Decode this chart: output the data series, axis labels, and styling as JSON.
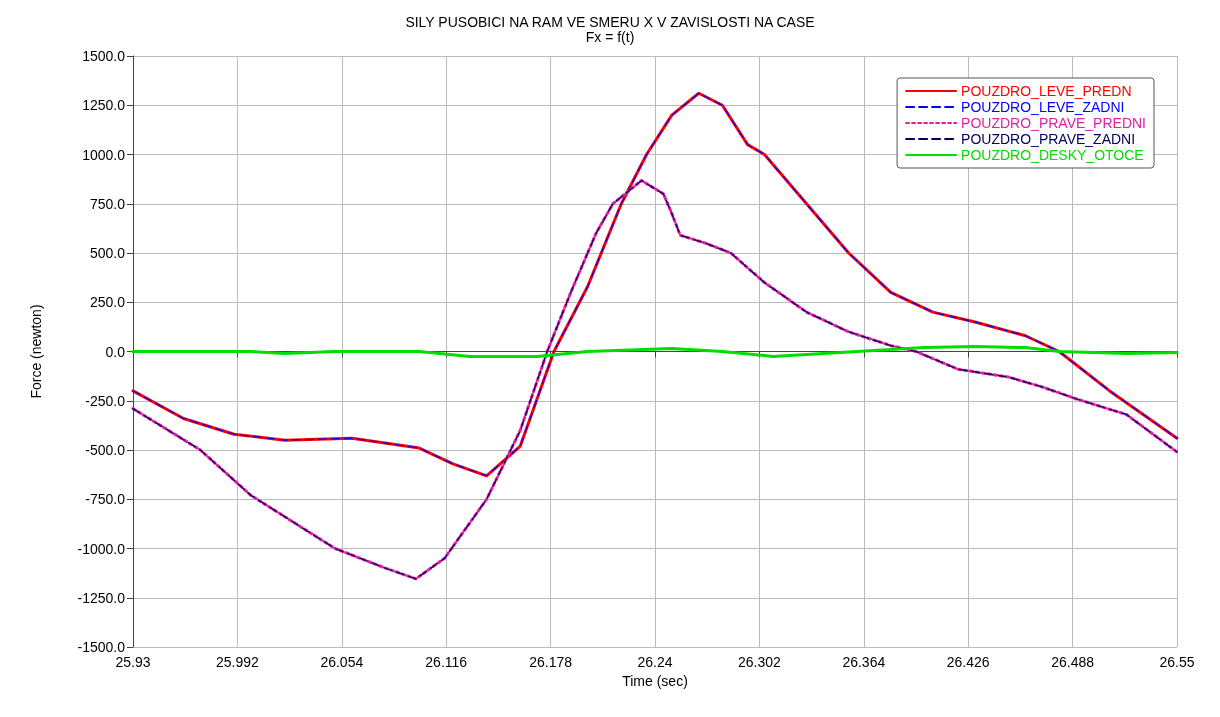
{
  "chart_data": {
    "type": "line",
    "title": "SILY PUSOBICI NA RAM VE SMERU X V ZAVISLOSTI NA CASE",
    "subtitle": "Fx = f(t)",
    "xlabel": "Time (sec)",
    "ylabel": "Force (newton)",
    "xlim": [
      25.93,
      26.55
    ],
    "xticks": [
      25.93,
      25.992,
      26.054,
      26.116,
      26.178,
      26.24,
      26.302,
      26.364,
      26.426,
      26.488,
      26.55
    ],
    "ylim": [
      -1500,
      1500
    ],
    "yticks": [
      {
        "value": -1500,
        "label": "-1500.0"
      },
      {
        "value": -1250,
        "label": "-1250.0"
      },
      {
        "value": -1000,
        "label": "-1000.0"
      },
      {
        "value": -750,
        "label": "-750.0"
      },
      {
        "value": -500,
        "label": "-500.0"
      },
      {
        "value": -250,
        "label": "-250.0"
      },
      {
        "value": 0,
        "label": "0.0"
      },
      {
        "value": 250,
        "label": "250.0"
      },
      {
        "value": 500,
        "label": "500.0"
      },
      {
        "value": 750,
        "label": "750.0"
      },
      {
        "value": 1000,
        "label": "1000.0"
      },
      {
        "value": 1250,
        "label": "1250.0"
      },
      {
        "value": 1500,
        "label": "1500.0"
      }
    ],
    "grid": true,
    "legend": "top right",
    "marker": "none",
    "series": [
      {
        "name": "POUZDRO_LEVE_PREDN",
        "color": "#ff0000",
        "line_style": "solid",
        "x": [
          25.93,
          25.96,
          25.99,
          26.02,
          26.06,
          26.1,
          26.12,
          26.14,
          26.16,
          26.18,
          26.2,
          26.22,
          26.235,
          26.25,
          26.266,
          26.28,
          26.295,
          26.305,
          26.33,
          26.355,
          26.38,
          26.405,
          26.43,
          26.46,
          26.48,
          26.51,
          26.55
        ],
        "values": [
          -200,
          -340,
          -420,
          -450,
          -440,
          -490,
          -570,
          -631,
          -480,
          0,
          330,
          750,
          1000,
          1200,
          1311,
          1250,
          1050,
          1000,
          750,
          500,
          300,
          200,
          150,
          80,
          0,
          -200,
          -440
        ]
      },
      {
        "name": "POUZDRO_LEVE_ZADNI",
        "color": "#0000ff",
        "line_style": "dashed",
        "x": [
          25.93,
          25.96,
          25.99,
          26.02,
          26.06,
          26.1,
          26.12,
          26.14,
          26.16,
          26.18,
          26.2,
          26.22,
          26.235,
          26.25,
          26.266,
          26.28,
          26.295,
          26.305,
          26.33,
          26.355,
          26.38,
          26.405,
          26.43,
          26.46,
          26.48,
          26.51,
          26.55
        ],
        "values": [
          -200,
          -340,
          -420,
          -450,
          -440,
          -490,
          -570,
          -631,
          -480,
          0,
          330,
          750,
          1000,
          1200,
          1311,
          1250,
          1050,
          1000,
          750,
          500,
          300,
          200,
          150,
          80,
          0,
          -200,
          -440
        ]
      },
      {
        "name": "POUZDRO_PRAVE_PREDNI",
        "color": "#e020a0",
        "line_style": "dotted",
        "x": [
          25.93,
          25.97,
          26.0,
          26.05,
          26.08,
          26.098,
          26.115,
          26.14,
          26.16,
          26.176,
          26.19,
          26.205,
          26.215,
          26.232,
          26.245,
          26.25,
          26.255,
          26.27,
          26.285,
          26.305,
          26.33,
          26.355,
          26.38,
          26.395,
          26.42,
          26.45,
          26.47,
          26.49,
          26.52,
          26.55
        ],
        "values": [
          -290,
          -500,
          -730,
          -1000,
          -1100,
          -1154,
          -1050,
          -750,
          -400,
          0,
          300,
          600,
          750,
          868,
          800,
          700,
          590,
          550,
          500,
          350,
          200,
          100,
          30,
          0,
          -90,
          -130,
          -180,
          -240,
          -320,
          -510
        ]
      },
      {
        "name": "POUZDRO_PRAVE_ZADNI",
        "color": "#000060",
        "line_style": "dashed",
        "x": [
          25.93,
          25.97,
          26.0,
          26.05,
          26.08,
          26.098,
          26.115,
          26.14,
          26.16,
          26.176,
          26.19,
          26.205,
          26.215,
          26.232,
          26.245,
          26.25,
          26.255,
          26.27,
          26.285,
          26.305,
          26.33,
          26.355,
          26.38,
          26.395,
          26.42,
          26.45,
          26.47,
          26.49,
          26.52,
          26.55
        ],
        "values": [
          -290,
          -500,
          -730,
          -1000,
          -1100,
          -1154,
          -1050,
          -750,
          -400,
          0,
          300,
          600,
          750,
          868,
          800,
          700,
          590,
          550,
          500,
          350,
          200,
          100,
          30,
          0,
          -90,
          -130,
          -180,
          -240,
          -320,
          -510
        ]
      },
      {
        "name": "POUZDRO_DESKY_OTOCE",
        "color": "#00dd00",
        "line_style": "solid",
        "x": [
          25.93,
          26.0,
          26.02,
          26.05,
          26.1,
          26.13,
          26.17,
          26.2,
          26.25,
          26.28,
          26.31,
          26.36,
          26.4,
          26.43,
          26.46,
          26.48,
          26.52,
          26.55
        ],
        "values": [
          0,
          0,
          -10,
          0,
          0,
          -25,
          -25,
          0,
          15,
          0,
          -25,
          0,
          20,
          25,
          20,
          0,
          -10,
          -5
        ]
      }
    ]
  }
}
